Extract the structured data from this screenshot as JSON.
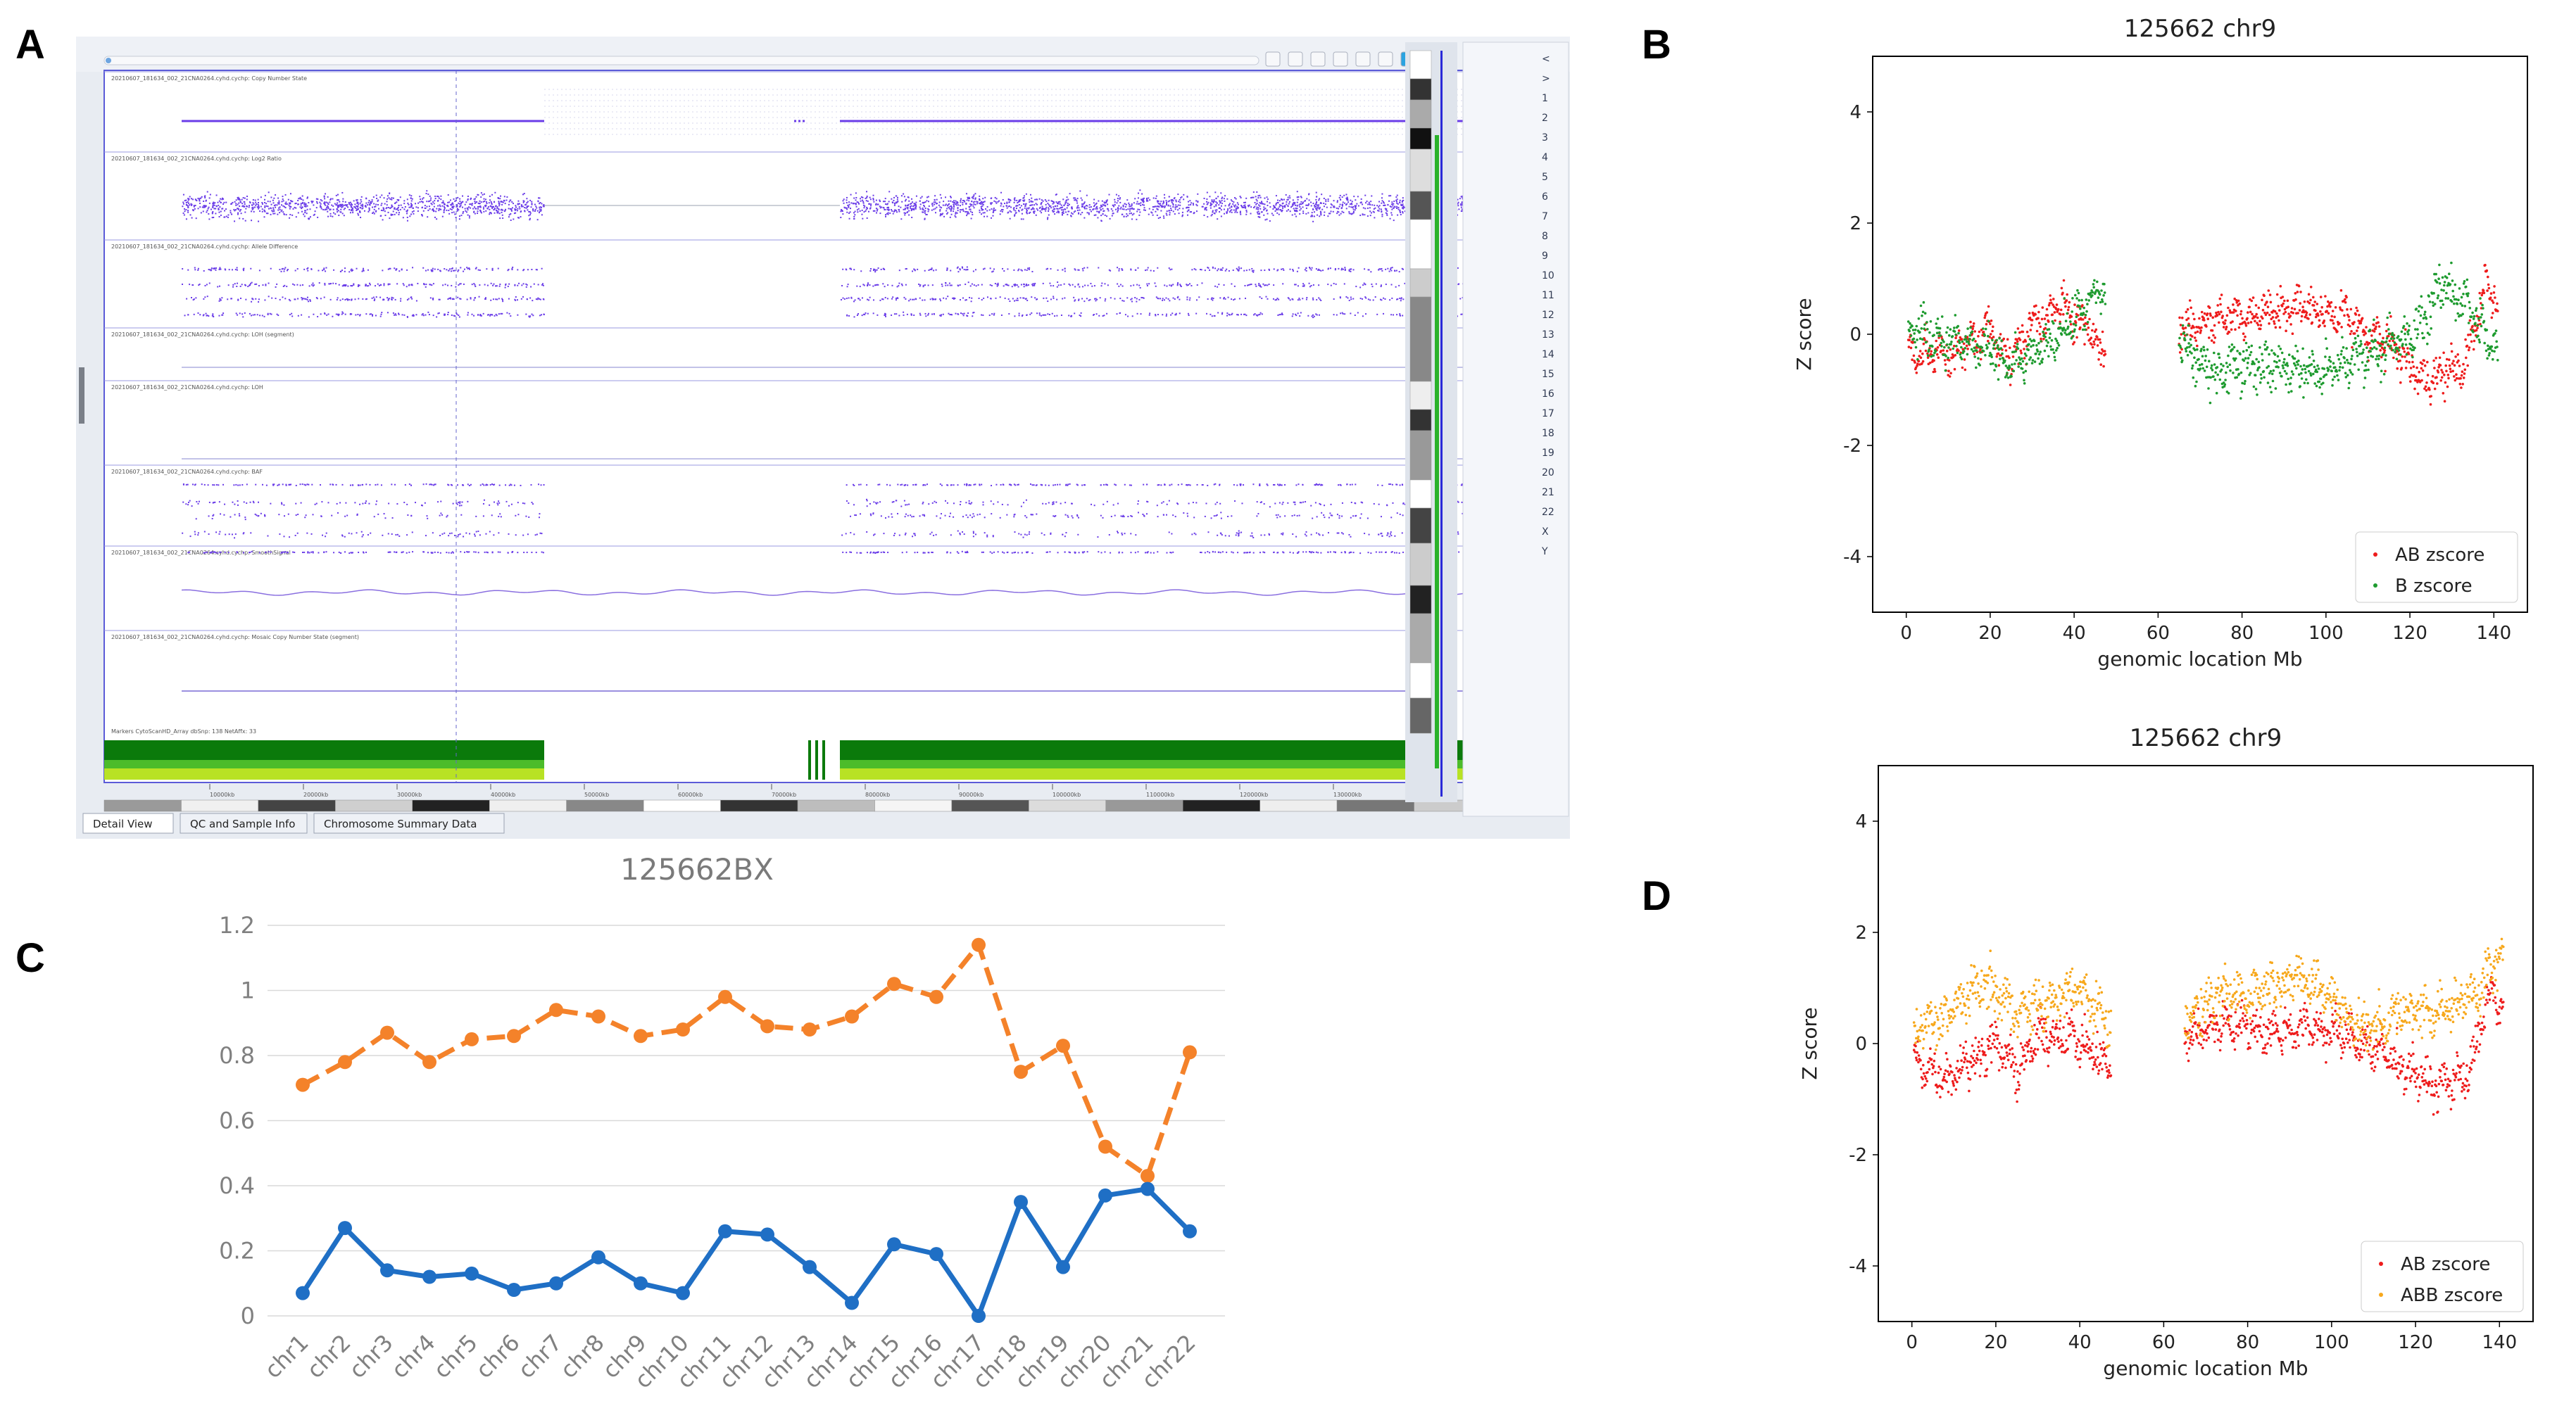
{
  "panel_letters": {
    "a": "A",
    "b": "B",
    "c": "C",
    "d": "D"
  },
  "panel_a": {
    "tracks": [
      "20210607_181634_002_21CNA0264.cyhd.cychp: Copy Number State",
      "20210607_181634_002_21CNA0264.cyhd.cychp: Log2 Ratio",
      "20210607_181634_002_21CNA0264.cyhd.cychp: Allele Difference",
      "20210607_181634_002_21CNA0264.cyhd.cychp: LOH (segment)",
      "20210607_181634_002_21CNA0264.cyhd.cychp: LOH",
      "20210607_181634_002_21CNA0264.cyhd.cychp: BAF",
      "20210607_181634_002_21CNA0264.cyhd.cychp: SmoothSignal",
      "20210607_181634_002_21CNA0264.cyhd.cychp: Mosaic Copy Number State (segment)"
    ],
    "markers_label": "Markers CytoScanHD_Array dbSnp: 138 NetAffx: 33",
    "position_ticks": [
      "10000kb",
      "20000kb",
      "30000kb",
      "40000kb",
      "50000kb",
      "60000kb",
      "70000kb",
      "80000kb",
      "90000kb",
      "100000kb",
      "110000kb",
      "120000kb",
      "130000kb",
      "140"
    ],
    "bottom_tabs": [
      "Detail View",
      "QC and Sample Info",
      "Chromosome Summary Data"
    ],
    "chromosome_list": [
      "<",
      ">",
      "1",
      "2",
      "3",
      "4",
      "5",
      "6",
      "7",
      "8",
      "9",
      "10",
      "11",
      "12",
      "13",
      "14",
      "15",
      "16",
      "17",
      "18",
      "19",
      "20",
      "21",
      "22",
      "X",
      "Y"
    ],
    "colors": {
      "signal": "#6a3ce8",
      "lane_dark": "#0b7a0b",
      "lane_mid": "#4cbc2a",
      "lane_light": "#b8e224"
    }
  },
  "chart_data": [
    {
      "panel": "B",
      "type": "scatter",
      "title": "125662 chr9",
      "xlabel": "genomic location Mb",
      "ylabel": "Z score",
      "xlim": [
        -8,
        148
      ],
      "ylim": [
        -5,
        5
      ],
      "xticks": [
        0,
        20,
        40,
        60,
        80,
        100,
        120,
        140
      ],
      "yticks": [
        -4,
        -2,
        0,
        2,
        4
      ],
      "legend_position": "lower-right",
      "series": [
        {
          "name": "AB zscore",
          "color": "#ee1c1c",
          "segments": [
            {
              "x_start": 0.5,
              "x_end": 47.5,
              "trend": [
                [
                  0.5,
                  -0.3
                ],
                [
                  10,
                  -0.4
                ],
                [
                  20,
                  0.1
                ],
                [
                  25,
                  -0.5
                ],
                [
                  30,
                  0.2
                ],
                [
                  37,
                  0.5
                ],
                [
                  47,
                  -0.2
                ]
              ],
              "spread": 0.35
            },
            {
              "x_start": 65,
              "x_end": 141,
              "trend": [
                [
                  65,
                  0.1
                ],
                [
                  75,
                  0.3
                ],
                [
                  85,
                  0.4
                ],
                [
                  95,
                  0.5
                ],
                [
                  105,
                  0.3
                ],
                [
                  115,
                  -0.2
                ],
                [
                  125,
                  -0.8
                ],
                [
                  133,
                  -0.5
                ],
                [
                  138,
                  0.9
                ],
                [
                  141,
                  0.5
                ]
              ],
              "spread": 0.35
            }
          ]
        },
        {
          "name": "B zscore",
          "color": "#1e9b2f",
          "segments": [
            {
              "x_start": 0.5,
              "x_end": 47.5,
              "trend": [
                [
                  0.5,
                  0.1
                ],
                [
                  10,
                  -0.1
                ],
                [
                  20,
                  -0.3
                ],
                [
                  25,
                  -0.6
                ],
                [
                  32,
                  -0.3
                ],
                [
                  40,
                  0.3
                ],
                [
                  47,
                  0.8
                ]
              ],
              "spread": 0.35
            },
            {
              "x_start": 65,
              "x_end": 141,
              "trend": [
                [
                  65,
                  -0.1
                ],
                [
                  72,
                  -0.7
                ],
                [
                  80,
                  -0.5
                ],
                [
                  90,
                  -0.6
                ],
                [
                  100,
                  -0.7
                ],
                [
                  110,
                  -0.3
                ],
                [
                  120,
                  -0.1
                ],
                [
                  128,
                  0.9
                ],
                [
                  133,
                  0.6
                ],
                [
                  141,
                  -0.4
                ]
              ],
              "spread": 0.4
            }
          ]
        }
      ]
    },
    {
      "panel": "C",
      "type": "line",
      "title": "125662BX",
      "categories": [
        "chr1",
        "chr2",
        "chr3",
        "chr4",
        "chr5",
        "chr6",
        "chr7",
        "chr8",
        "chr9",
        "chr10",
        "chr11",
        "chr12",
        "chr13",
        "chr14",
        "chr15",
        "chr16",
        "chr17",
        "chr18",
        "chr19",
        "chr20",
        "chr21",
        "chr22"
      ],
      "ylim": [
        0,
        1.2
      ],
      "yticks": [
        "0",
        "0.2",
        "0.4",
        "0.6",
        "0.8",
        "1",
        "1.2"
      ],
      "grid": true,
      "series": [
        {
          "name": "orange",
          "style": "dashed",
          "color": "#f4822a",
          "values": [
            0.71,
            0.78,
            0.87,
            0.78,
            0.85,
            0.86,
            0.94,
            0.92,
            0.86,
            0.88,
            0.98,
            0.89,
            0.88,
            0.92,
            1.02,
            0.98,
            1.14,
            0.75,
            0.83,
            0.52,
            0.43,
            0.81
          ]
        },
        {
          "name": "blue",
          "style": "solid",
          "color": "#1f6fc5",
          "values": [
            0.07,
            0.27,
            0.14,
            0.12,
            0.13,
            0.08,
            0.1,
            0.18,
            0.1,
            0.07,
            0.26,
            0.25,
            0.15,
            0.04,
            0.22,
            0.19,
            0.0,
            0.35,
            0.15,
            0.37,
            0.39,
            0.26
          ]
        }
      ]
    },
    {
      "panel": "D",
      "type": "scatter",
      "title": "125662 chr9",
      "xlabel": "genomic location Mb",
      "ylabel": "Z score",
      "xlim": [
        -8,
        148
      ],
      "ylim": [
        -5,
        5
      ],
      "xticks": [
        0,
        20,
        40,
        60,
        80,
        100,
        120,
        140
      ],
      "yticks": [
        -4,
        -2,
        0,
        2,
        4
      ],
      "legend_position": "lower-right",
      "series": [
        {
          "name": "AB zscore",
          "color": "#ee1c1c",
          "segments": [
            {
              "x_start": 0.5,
              "x_end": 47.5,
              "trend": [
                [
                  0.5,
                  -0.3
                ],
                [
                  8,
                  -0.6
                ],
                [
                  20,
                  0.0
                ],
                [
                  25,
                  -0.5
                ],
                [
                  30,
                  0.1
                ],
                [
                  37,
                  0.2
                ],
                [
                  47,
                  -0.4
                ]
              ],
              "spread": 0.35
            },
            {
              "x_start": 65,
              "x_end": 141,
              "trend": [
                [
                  65,
                  0.1
                ],
                [
                  75,
                  0.4
                ],
                [
                  85,
                  0.2
                ],
                [
                  95,
                  0.3
                ],
                [
                  105,
                  0.1
                ],
                [
                  115,
                  -0.3
                ],
                [
                  125,
                  -0.8
                ],
                [
                  133,
                  -0.5
                ],
                [
                  138,
                  1.0
                ],
                [
                  141,
                  0.5
                ]
              ],
              "spread": 0.35
            }
          ]
        },
        {
          "name": "ABB zscore",
          "color": "#f7a81c",
          "segments": [
            {
              "x_start": 0.5,
              "x_end": 47.5,
              "trend": [
                [
                  0.5,
                  0.2
                ],
                [
                  8,
                  0.5
                ],
                [
                  17,
                  1.1
                ],
                [
                  25,
                  0.6
                ],
                [
                  32,
                  0.7
                ],
                [
                  40,
                  1.0
                ],
                [
                  47,
                  0.4
                ]
              ],
              "spread": 0.4
            },
            {
              "x_start": 65,
              "x_end": 141,
              "trend": [
                [
                  65,
                  0.4
                ],
                [
                  72,
                  0.8
                ],
                [
                  80,
                  0.9
                ],
                [
                  90,
                  1.2
                ],
                [
                  98,
                  1.0
                ],
                [
                  108,
                  0.2
                ],
                [
                  118,
                  0.6
                ],
                [
                  128,
                  0.6
                ],
                [
                  135,
                  1.0
                ],
                [
                  141,
                  1.6
                ]
              ],
              "spread": 0.4
            }
          ]
        }
      ]
    }
  ]
}
